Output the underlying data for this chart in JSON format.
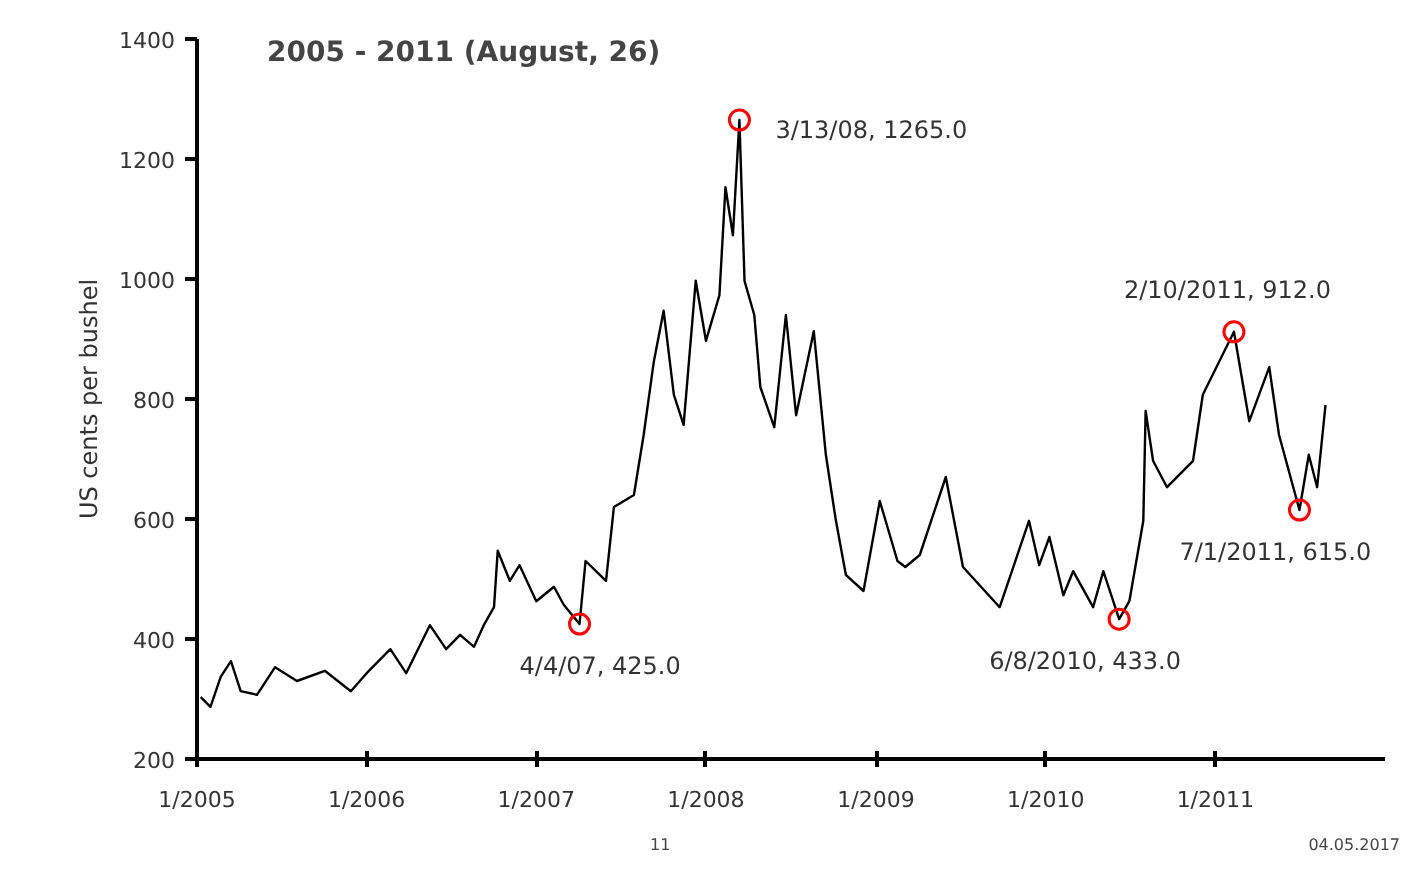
{
  "chart_data": {
    "type": "line",
    "title": "2005 - 2011 (August, 26)",
    "ylabel": "US cents per bushel",
    "xlim": [
      "2005-01-01",
      "2012-01-01"
    ],
    "xticks": [
      {
        "value": "2005-01-01",
        "label": "1/2005"
      },
      {
        "value": "2006-01-01",
        "label": "1/2006"
      },
      {
        "value": "2007-01-01",
        "label": "1/2007"
      },
      {
        "value": "2008-01-01",
        "label": "1/2008"
      },
      {
        "value": "2009-01-01",
        "label": "1/2009"
      },
      {
        "value": "2010-01-01",
        "label": "1/2010"
      },
      {
        "value": "2011-01-01",
        "label": "1/2011"
      }
    ],
    "ylim": [
      200,
      1400
    ],
    "yticks": [
      200,
      400,
      600,
      800,
      1000,
      1200,
      1400
    ],
    "grid": false,
    "series": [
      {
        "color": "#000000",
        "x": [
          "2005-01-09",
          "2005-01-30",
          "2005-02-21",
          "2005-03-15",
          "2005-04-05",
          "2005-05-10",
          "2005-06-18",
          "2005-08-04",
          "2005-10-03",
          "2005-11-28",
          "2006-01-01",
          "2006-02-21",
          "2006-03-27",
          "2006-05-17",
          "2006-06-21",
          "2006-07-21",
          "2006-08-20",
          "2006-09-10",
          "2006-10-02",
          "2006-10-10",
          "2006-11-05",
          "2006-11-26",
          "2007-01-01",
          "2007-02-08",
          "2007-03-01",
          "2007-04-04",
          "2007-04-17",
          "2007-05-31",
          "2007-06-17",
          "2007-07-30",
          "2007-08-20",
          "2007-09-11",
          "2007-10-02",
          "2007-10-24",
          "2007-11-14",
          "2007-12-10",
          "2008-01-01",
          "2008-01-30",
          "2008-02-12",
          "2008-02-28",
          "2008-03-13",
          "2008-03-24",
          "2008-04-14",
          "2008-04-27",
          "2008-05-27",
          "2008-06-21",
          "2008-07-13",
          "2008-08-20",
          "2008-09-15",
          "2008-10-06",
          "2008-10-28",
          "2008-12-05",
          "2009-01-09",
          "2009-02-16",
          "2009-03-05",
          "2009-04-05",
          "2009-05-31",
          "2009-07-07",
          "2009-09-24",
          "2009-11-26",
          "2009-12-18",
          "2010-01-09",
          "2010-02-08",
          "2010-03-01",
          "2010-04-13",
          "2010-05-05",
          "2010-06-08",
          "2010-06-30",
          "2010-07-30",
          "2010-08-04",
          "2010-08-20",
          "2010-09-19",
          "2010-11-14",
          "2010-12-05",
          "2011-02-10",
          "2011-03-15",
          "2011-04-27",
          "2011-05-18",
          "2011-07-01",
          "2011-07-21",
          "2011-08-08",
          "2011-08-26"
        ],
        "values": [
          303,
          287,
          337,
          363,
          313,
          307,
          353,
          330,
          347,
          313,
          343,
          383,
          343,
          423,
          383,
          407,
          387,
          423,
          453,
          547,
          497,
          523,
          463,
          487,
          457,
          425,
          530,
          497,
          620,
          640,
          740,
          863,
          947,
          807,
          757,
          997,
          897,
          973,
          1153,
          1073,
          1265,
          997,
          940,
          820,
          753,
          940,
          773,
          913,
          707,
          600,
          507,
          480,
          630,
          530,
          520,
          540,
          670,
          520,
          453,
          597,
          523,
          570,
          473,
          513,
          453,
          513,
          433,
          463,
          597,
          780,
          697,
          653,
          697,
          807,
          912,
          763,
          853,
          740,
          615,
          707,
          653,
          790
        ]
      },
      {
        "type": "scatter",
        "color": "#ff0000",
        "marker": "circle",
        "x": [
          "2007-04-04",
          "2008-03-13",
          "2010-06-08",
          "2011-02-10",
          "2011-07-01"
        ],
        "values": [
          425,
          1265,
          433,
          912,
          615
        ]
      }
    ],
    "annotations": [
      {
        "text": "4/4/07, 425.0",
        "x": "2007-04-04",
        "y": 425
      },
      {
        "text": "3/13/08, 1265.0",
        "x": "2008-03-13",
        "y": 1265
      },
      {
        "text": "6/8/2010, 433.0",
        "x": "2010-06-08",
        "y": 433
      },
      {
        "text": "2/10/2011, 912.0",
        "x": "2011-02-10",
        "y": 912
      },
      {
        "text": "7/1/2011, 615.0",
        "x": "2011-07-01",
        "y": 615
      },
      "11",
      "04.05.2017"
    ]
  }
}
